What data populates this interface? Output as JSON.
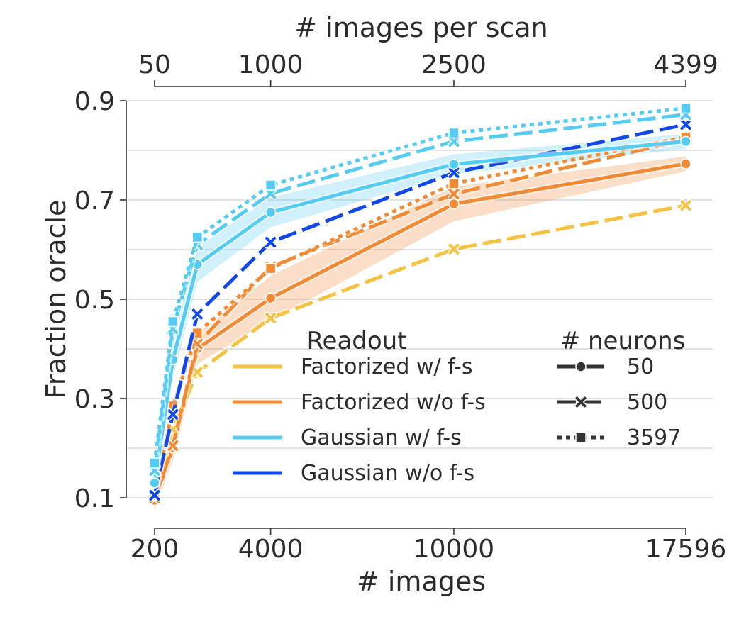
{
  "chart_data": {
    "type": "line",
    "xlabel": "# images",
    "ylabel": "Fraction oracle",
    "top_xlabel": "# images per scan",
    "xlim": [
      0,
      17596
    ],
    "ylim": [
      0.1,
      0.9
    ],
    "yticks": [
      0.1,
      0.3,
      0.5,
      0.7,
      0.9
    ],
    "ytick_labels": [
      "0.1",
      "0.3",
      "0.5",
      "0.7",
      "0.9"
    ],
    "xticks": [
      200,
      4000,
      10000,
      17596
    ],
    "xtick_labels": [
      "200",
      "4000",
      "10000",
      "17596"
    ],
    "top_xticks": [
      200,
      4000,
      10000,
      17596
    ],
    "top_xtick_labels": [
      "50",
      "1000",
      "2500",
      "4399"
    ],
    "grid": "horizontal",
    "x": [
      200,
      800,
      1600,
      4000,
      10000,
      17596
    ],
    "readout_legend_title": "Readout",
    "neurons_legend_title": "# neurons",
    "readouts": [
      {
        "name": "Factorized w/ f-s",
        "color": "#f5c242"
      },
      {
        "name": "Factorized w/o f-s",
        "color": "#f08a35"
      },
      {
        "name": "Gaussian w/ f-s",
        "color": "#56ccf2"
      },
      {
        "name": "Gaussian w/o f-s",
        "color": "#1248e6"
      }
    ],
    "neuron_counts": [
      {
        "name": "50",
        "dash": "solid",
        "marker": "circle"
      },
      {
        "name": "500",
        "dash": "dashed",
        "marker": "x"
      },
      {
        "name": "3597",
        "dash": "dotted",
        "marker": "square"
      }
    ],
    "series": [
      {
        "readout": 1,
        "neurons": 0,
        "values": [
          0.095,
          0.2,
          0.4,
          0.502,
          0.692,
          0.773
        ],
        "band": [
          0.02,
          0.025,
          0.03,
          0.045,
          0.035,
          0.015
        ]
      },
      {
        "readout": 0,
        "neurons": 1,
        "values": [
          0.105,
          0.238,
          0.353,
          0.462,
          0.601,
          0.689
        ]
      },
      {
        "readout": 1,
        "neurons": 1,
        "values": [
          0.1,
          0.205,
          0.41,
          0.565,
          0.712,
          0.822
        ]
      },
      {
        "readout": 1,
        "neurons": 2,
        "values": [
          0.105,
          0.285,
          0.432,
          0.562,
          0.733,
          0.827
        ]
      },
      {
        "readout": 3,
        "neurons": 1,
        "values": [
          0.105,
          0.268,
          0.47,
          0.615,
          0.755,
          0.852
        ]
      },
      {
        "readout": 2,
        "neurons": 0,
        "values": [
          0.13,
          0.378,
          0.57,
          0.675,
          0.772,
          0.818
        ],
        "band": [
          0.02,
          0.04,
          0.035,
          0.03,
          0.02,
          0.015
        ]
      },
      {
        "readout": 2,
        "neurons": 1,
        "values": [
          0.155,
          0.44,
          0.61,
          0.713,
          0.818,
          0.872
        ]
      },
      {
        "readout": 2,
        "neurons": 2,
        "values": [
          0.17,
          0.455,
          0.625,
          0.73,
          0.835,
          0.885
        ]
      }
    ]
  }
}
